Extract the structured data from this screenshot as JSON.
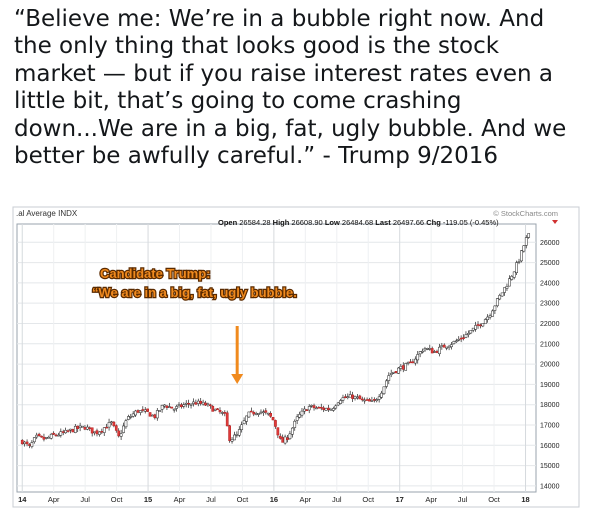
{
  "tweet": {
    "quote_text": "“Believe me: We’re in a bubble right now. And the only thing that looks good is the stock market — but if you raise interest rates even a little bit, that’s going to come crashing down...We are in a big, fat, ugly bubble. And we better be awfully careful.” - Trump 9/2016"
  },
  "chart_data": {
    "type": "candlestick",
    "title": ".al Average INDX",
    "source": "© StockCharts.com",
    "stats": {
      "open_label": "Open",
      "open": "26584.28",
      "high_label": "High",
      "high": "26608.90",
      "low_label": "Low",
      "low": "26484.68",
      "last_label": "Last",
      "last": "26497.66",
      "chg_label": "Chg",
      "chg": "-119.05 (-0.45%)"
    },
    "annotation": {
      "line1": "Candidate Trump:",
      "line2": "“We are in a big, fat, ugly bubble."
    },
    "ylim": [
      13700,
      26900
    ],
    "y_ticks": [
      14000,
      15000,
      16000,
      17000,
      18000,
      19000,
      20000,
      21000,
      22000,
      23000,
      24000,
      25000,
      26000
    ],
    "x_ticks": [
      {
        "label": "14",
        "m": 0,
        "bold": true
      },
      {
        "label": "Apr",
        "m": 3
      },
      {
        "label": "Jul",
        "m": 6
      },
      {
        "label": "Oct",
        "m": 9
      },
      {
        "label": "15",
        "m": 12,
        "bold": true
      },
      {
        "label": "Apr",
        "m": 15
      },
      {
        "label": "Jul",
        "m": 18
      },
      {
        "label": "Oct",
        "m": 21
      },
      {
        "label": "16",
        "m": 24,
        "bold": true
      },
      {
        "label": "Apr",
        "m": 27
      },
      {
        "label": "Jul",
        "m": 30
      },
      {
        "label": "Oct",
        "m": 33
      },
      {
        "label": "17",
        "m": 36,
        "bold": true
      },
      {
        "label": "Apr",
        "m": 39
      },
      {
        "label": "Jul",
        "m": 42
      },
      {
        "label": "Oct",
        "m": 45
      },
      {
        "label": "18",
        "m": 48,
        "bold": true
      }
    ],
    "annotation_month": 20.5,
    "price_path": [
      [
        0,
        16200
      ],
      [
        0.7,
        15900
      ],
      [
        1.3,
        16400
      ],
      [
        2.2,
        16300
      ],
      [
        3,
        16500
      ],
      [
        4,
        16600
      ],
      [
        5,
        16800
      ],
      [
        6,
        16900
      ],
      [
        7,
        16600
      ],
      [
        8.5,
        17100
      ],
      [
        9.2,
        16400
      ],
      [
        10,
        17300
      ],
      [
        11,
        17700
      ],
      [
        12,
        17600
      ],
      [
        12.6,
        17400
      ],
      [
        13.5,
        18000
      ],
      [
        14.5,
        17800
      ],
      [
        15.5,
        18000
      ],
      [
        16.5,
        18100
      ],
      [
        17.5,
        18000
      ],
      [
        18.5,
        17700
      ],
      [
        19.3,
        17500
      ],
      [
        19.8,
        16300
      ],
      [
        20.5,
        16500
      ],
      [
        21.5,
        17500
      ],
      [
        22.5,
        17700
      ],
      [
        23.5,
        17500
      ],
      [
        24,
        17200
      ],
      [
        24.7,
        16100
      ],
      [
        25.3,
        16400
      ],
      [
        26.3,
        17400
      ],
      [
        27.3,
        17900
      ],
      [
        28.5,
        17800
      ],
      [
        29.5,
        17800
      ],
      [
        30.3,
        18300
      ],
      [
        31.5,
        18400
      ],
      [
        32.5,
        18200
      ],
      [
        33.5,
        18100
      ],
      [
        34.3,
        18700
      ],
      [
        35,
        19500
      ],
      [
        36,
        19800
      ],
      [
        37,
        20000
      ],
      [
        38.3,
        20800
      ],
      [
        39.3,
        20600
      ],
      [
        40.3,
        20900
      ],
      [
        41.3,
        21100
      ],
      [
        42.5,
        21500
      ],
      [
        43.5,
        21900
      ],
      [
        44.5,
        22400
      ],
      [
        45.5,
        23300
      ],
      [
        46.3,
        24000
      ],
      [
        47,
        24700
      ],
      [
        47.5,
        25300
      ],
      [
        48,
        26100
      ],
      [
        48.5,
        26500
      ]
    ]
  }
}
